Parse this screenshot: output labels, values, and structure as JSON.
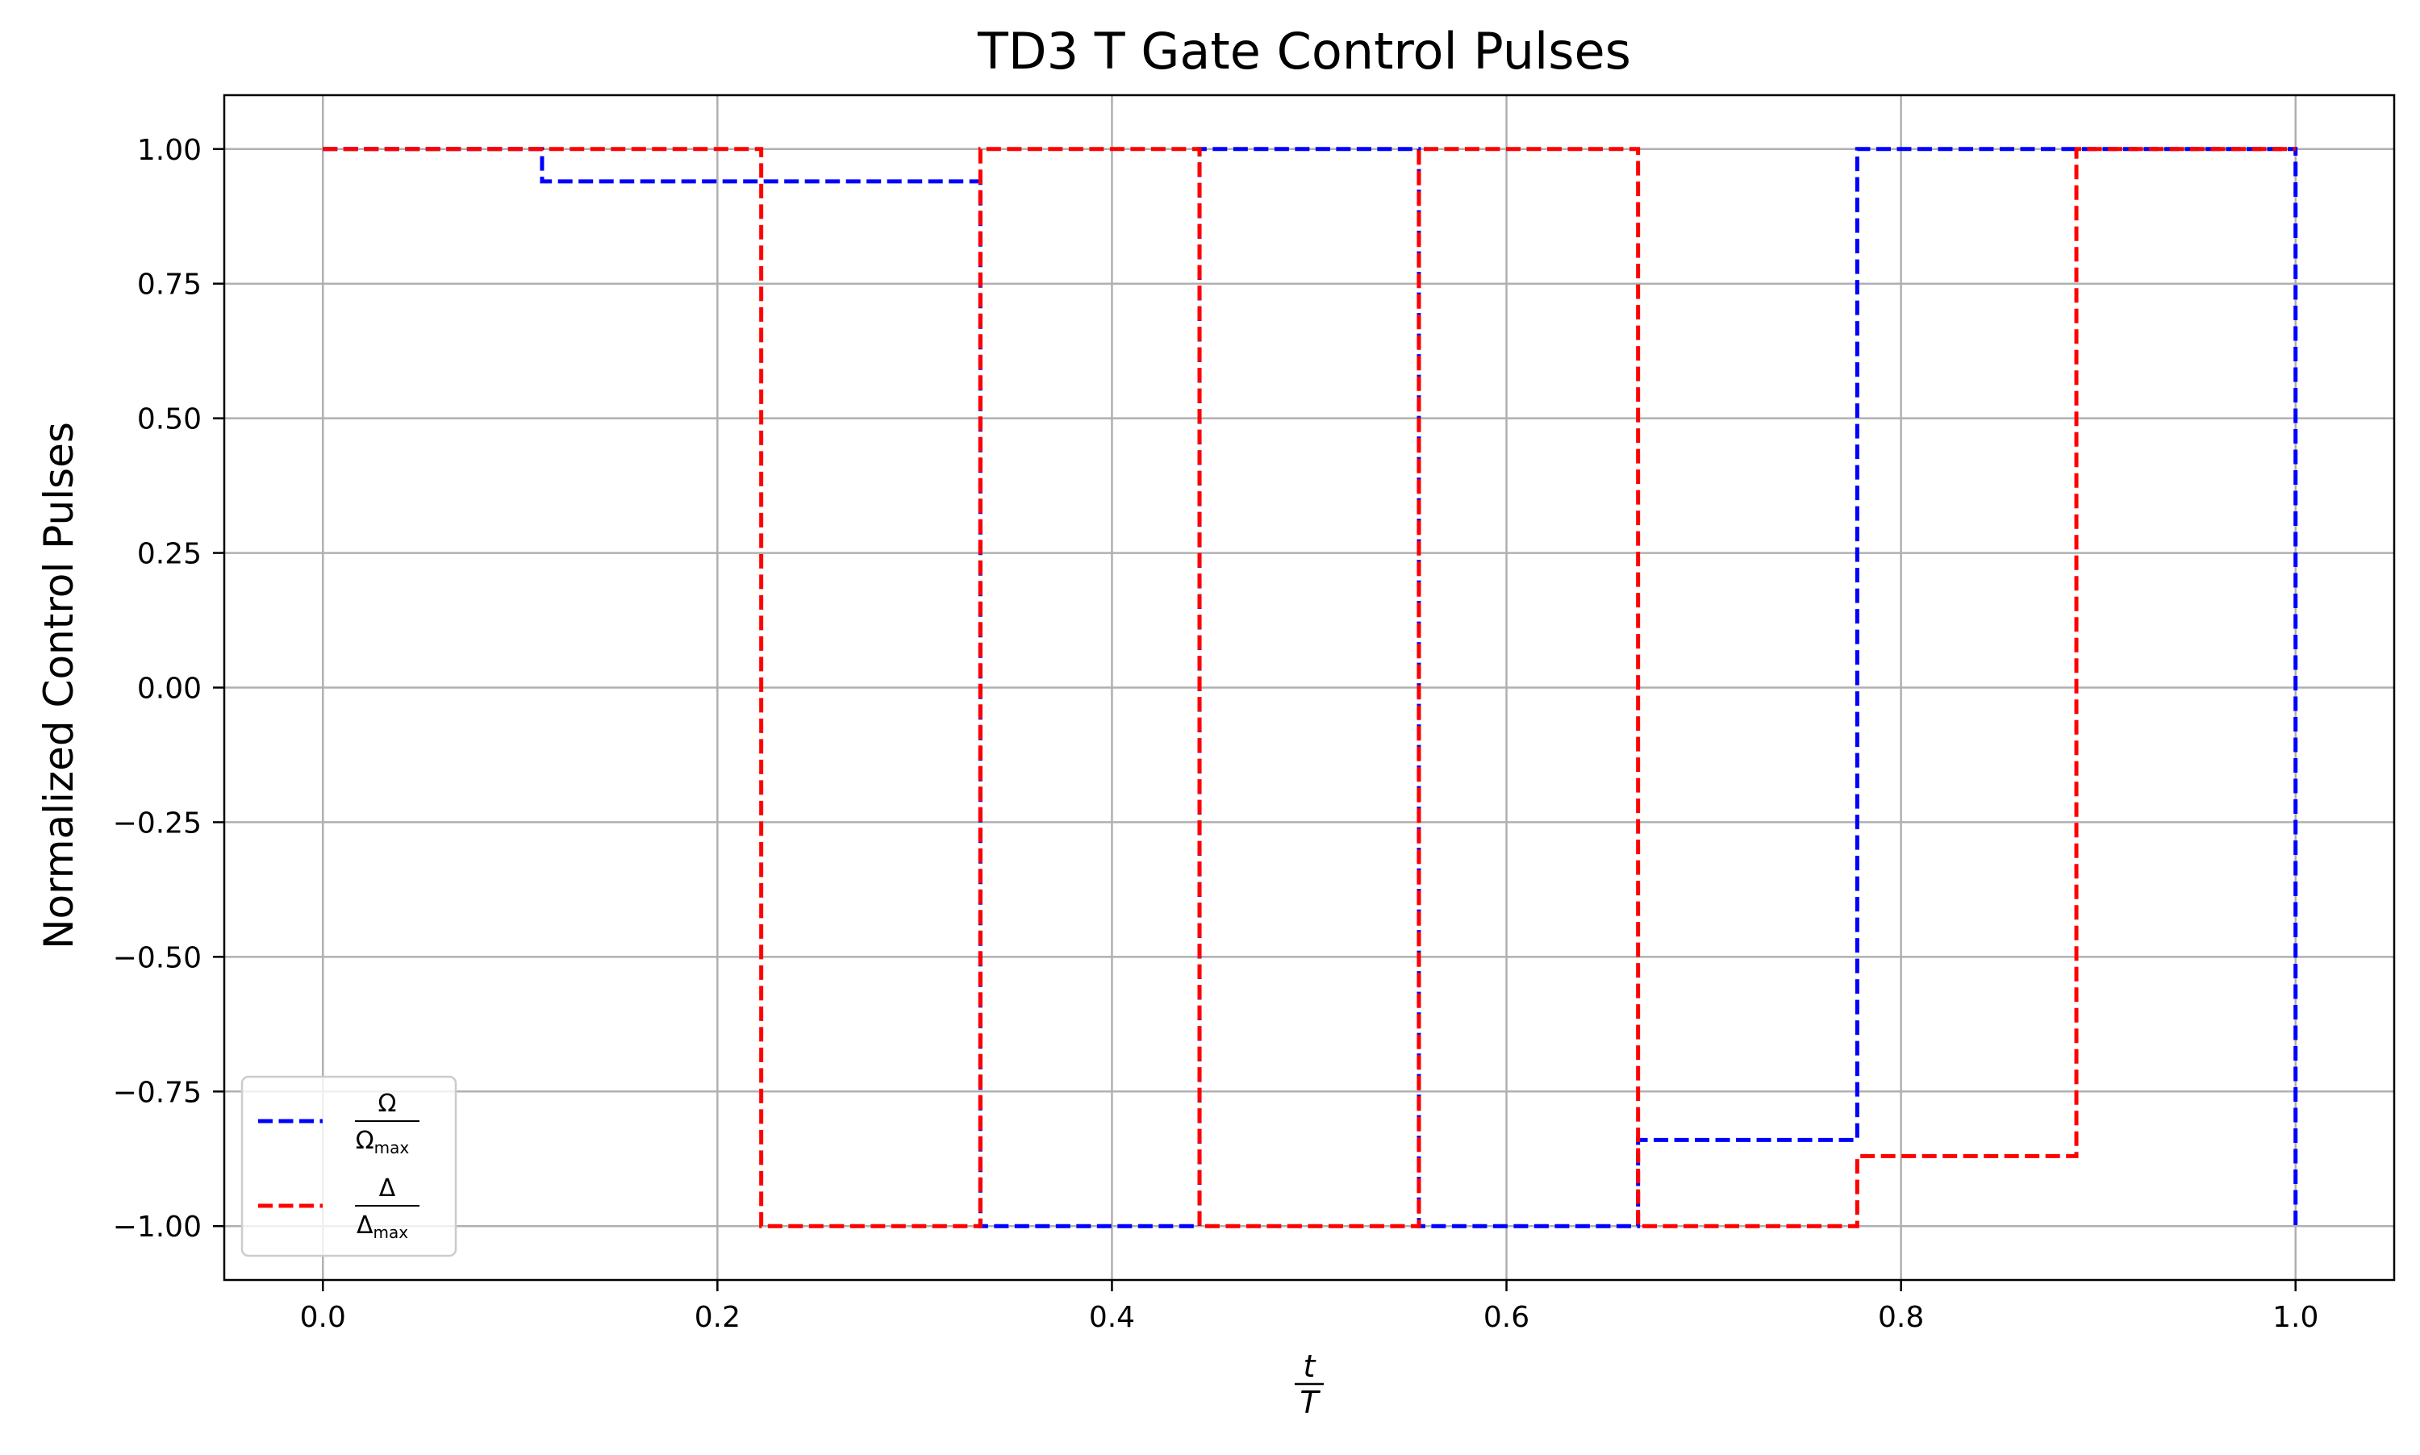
{
  "chart_data": {
    "type": "line",
    "title": "TD3 T Gate Control Pulses",
    "xlabel": {
      "numerator": "t",
      "denominator": "T"
    },
    "ylabel": "Normalized Control Pulses",
    "xlim": [
      -0.05,
      1.05
    ],
    "ylim": [
      -1.1,
      1.1
    ],
    "x_ticks": [
      0.0,
      0.2,
      0.4,
      0.6,
      0.8,
      1.0
    ],
    "x_tick_labels": [
      "0.0",
      "0.2",
      "0.4",
      "0.6",
      "0.8",
      "1.0"
    ],
    "y_ticks": [
      1.0,
      0.75,
      0.5,
      0.25,
      0.0,
      -0.25,
      -0.5,
      -0.75,
      -1.0
    ],
    "y_tick_labels": [
      "1.00",
      "0.75",
      "0.50",
      "0.25",
      "0.00",
      "−0.25",
      "−0.50",
      "−0.75",
      "−1.00"
    ],
    "grid": true,
    "legend_position": "lower-left",
    "step": "post",
    "line_style": "dashed",
    "x": [
      0.0,
      0.1111,
      0.2222,
      0.3333,
      0.4444,
      0.5556,
      0.6667,
      0.7778,
      0.8889,
      1.0
    ],
    "series": [
      {
        "symbol": "Ω",
        "subscript": "max",
        "color": "#0000ff",
        "values": [
          1.0,
          0.94,
          0.94,
          -1.0,
          1.0,
          -1.0,
          -0.84,
          1.0,
          1.0,
          -1.0
        ]
      },
      {
        "symbol": "Δ",
        "subscript": "max",
        "color": "#ff0000",
        "values": [
          1.0,
          1.0,
          -1.0,
          1.0,
          -1.0,
          1.0,
          -1.0,
          -0.87,
          1.0,
          1.0
        ]
      }
    ]
  }
}
